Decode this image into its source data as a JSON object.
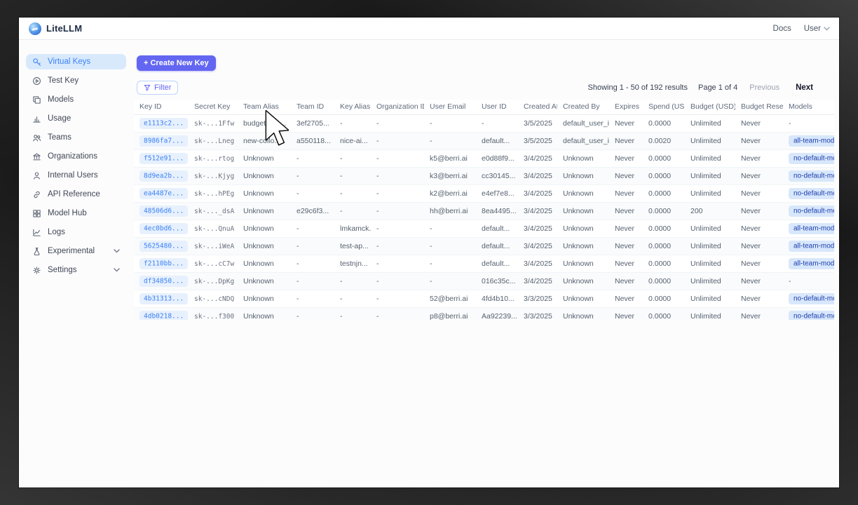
{
  "brand": {
    "name": "LiteLLM"
  },
  "topnav": {
    "docs": "Docs",
    "user": "User"
  },
  "colors": {
    "accent": "#6366f1",
    "link_blue": "#3b82f6",
    "sidebar_active_bg": "#d8e9fc",
    "badge_bg": "#d8e7fb",
    "badge_text": "#1e40af"
  },
  "sidebar": {
    "items": [
      {
        "label": "Virtual Keys",
        "icon": "key-icon",
        "active": true,
        "expandable": false
      },
      {
        "label": "Test Key",
        "icon": "play-circle-icon",
        "active": false,
        "expandable": false
      },
      {
        "label": "Models",
        "icon": "blocks-icon",
        "active": false,
        "expandable": false
      },
      {
        "label": "Usage",
        "icon": "bar-chart-icon",
        "active": false,
        "expandable": false
      },
      {
        "label": "Teams",
        "icon": "people-icon",
        "active": false,
        "expandable": false
      },
      {
        "label": "Organizations",
        "icon": "bank-icon",
        "active": false,
        "expandable": false
      },
      {
        "label": "Internal Users",
        "icon": "user-icon",
        "active": false,
        "expandable": false
      },
      {
        "label": "API Reference",
        "icon": "link-icon",
        "active": false,
        "expandable": false
      },
      {
        "label": "Model Hub",
        "icon": "grid-icon",
        "active": false,
        "expandable": false
      },
      {
        "label": "Logs",
        "icon": "line-chart-icon",
        "active": false,
        "expandable": false
      },
      {
        "label": "Experimental",
        "icon": "flask-icon",
        "active": false,
        "expandable": true
      },
      {
        "label": "Settings",
        "icon": "gear-icon",
        "active": false,
        "expandable": true
      }
    ]
  },
  "toolbar": {
    "create_button": "+ Create New Key",
    "filter_button": "Filter"
  },
  "pagination": {
    "showing": "Showing 1 - 50 of 192 results",
    "page": "Page 1 of 4",
    "previous": "Previous",
    "next": "Next"
  },
  "table": {
    "columns": [
      "Key ID",
      "Secret Key",
      "Team Alias",
      "Team ID",
      "Key Alias",
      "Organization ID",
      "User Email",
      "User ID",
      "Created At",
      "Created By",
      "Expires",
      "Spend (USD)",
      "Budget (USD)",
      "Budget Reset",
      "Models"
    ],
    "rows": [
      {
        "key_id": "e1113c2...",
        "secret_key": "sk-...1Ffw",
        "team_alias": "budget_tea...",
        "team_id": "3ef2705...",
        "key_alias": "-",
        "organization_id": "-",
        "user_email": "-",
        "user_id": "-",
        "created_at": "3/5/2025",
        "created_by": "default_user_id",
        "expires": "Never",
        "spend": "0.0000",
        "budget": "Unlimited",
        "budget_reset": "Never",
        "models": ""
      },
      {
        "key_id": "8986fa7...",
        "secret_key": "sk-...Lneg",
        "team_alias": "new-collo...",
        "team_id": "a550118...",
        "key_alias": "nice-ai...",
        "organization_id": "-",
        "user_email": "-",
        "user_id": "default...",
        "created_at": "3/5/2025",
        "created_by": "default_user_id",
        "expires": "Never",
        "spend": "0.0020",
        "budget": "Unlimited",
        "budget_reset": "Never",
        "models": "all-team-models"
      },
      {
        "key_id": "f512e91...",
        "secret_key": "sk-...rtog",
        "team_alias": "Unknown",
        "team_id": "-",
        "key_alias": "-",
        "organization_id": "-",
        "user_email": "k5@berri.ai",
        "user_id": "e0d88f9...",
        "created_at": "3/4/2025",
        "created_by": "Unknown",
        "expires": "Never",
        "spend": "0.0000",
        "budget": "Unlimited",
        "budget_reset": "Never",
        "models": "no-default-models"
      },
      {
        "key_id": "8d9ea2b...",
        "secret_key": "sk-...Kjyg",
        "team_alias": "Unknown",
        "team_id": "-",
        "key_alias": "-",
        "organization_id": "-",
        "user_email": "k3@berri.ai",
        "user_id": "cc30145...",
        "created_at": "3/4/2025",
        "created_by": "Unknown",
        "expires": "Never",
        "spend": "0.0000",
        "budget": "Unlimited",
        "budget_reset": "Never",
        "models": "no-default-models"
      },
      {
        "key_id": "ea4487e...",
        "secret_key": "sk-...hPEg",
        "team_alias": "Unknown",
        "team_id": "-",
        "key_alias": "-",
        "organization_id": "-",
        "user_email": "k2@berri.ai",
        "user_id": "e4ef7e8...",
        "created_at": "3/4/2025",
        "created_by": "Unknown",
        "expires": "Never",
        "spend": "0.0000",
        "budget": "Unlimited",
        "budget_reset": "Never",
        "models": "no-default-models"
      },
      {
        "key_id": "48506d6...",
        "secret_key": "sk-..._dsA",
        "team_alias": "Unknown",
        "team_id": "e29c6f3...",
        "key_alias": "-",
        "organization_id": "-",
        "user_email": "hh@berri.ai",
        "user_id": "8ea4495...",
        "created_at": "3/4/2025",
        "created_by": "Unknown",
        "expires": "Never",
        "spend": "0.0000",
        "budget": "200",
        "budget_reset": "Never",
        "models": "no-default-models"
      },
      {
        "key_id": "4ec0bd6...",
        "secret_key": "sk-...QnuA",
        "team_alias": "Unknown",
        "team_id": "-",
        "key_alias": "lmkamck...",
        "organization_id": "-",
        "user_email": "-",
        "user_id": "default...",
        "created_at": "3/4/2025",
        "created_by": "Unknown",
        "expires": "Never",
        "spend": "0.0000",
        "budget": "Unlimited",
        "budget_reset": "Never",
        "models": "all-team-models"
      },
      {
        "key_id": "5625480...",
        "secret_key": "sk-...iWeA",
        "team_alias": "Unknown",
        "team_id": "-",
        "key_alias": "test-ap...",
        "organization_id": "-",
        "user_email": "-",
        "user_id": "default...",
        "created_at": "3/4/2025",
        "created_by": "Unknown",
        "expires": "Never",
        "spend": "0.0000",
        "budget": "Unlimited",
        "budget_reset": "Never",
        "models": "all-team-models"
      },
      {
        "key_id": "f2110bb...",
        "secret_key": "sk-...cC7w",
        "team_alias": "Unknown",
        "team_id": "-",
        "key_alias": "testnjn...",
        "organization_id": "-",
        "user_email": "-",
        "user_id": "default...",
        "created_at": "3/4/2025",
        "created_by": "Unknown",
        "expires": "Never",
        "spend": "0.0000",
        "budget": "Unlimited",
        "budget_reset": "Never",
        "models": "all-team-models"
      },
      {
        "key_id": "df34850...",
        "secret_key": "sk-...DpKg",
        "team_alias": "Unknown",
        "team_id": "-",
        "key_alias": "-",
        "organization_id": "-",
        "user_email": "-",
        "user_id": "016c35c...",
        "created_at": "3/4/2025",
        "created_by": "Unknown",
        "expires": "Never",
        "spend": "0.0000",
        "budget": "Unlimited",
        "budget_reset": "Never",
        "models": ""
      },
      {
        "key_id": "4b31313...",
        "secret_key": "sk-...cNDQ",
        "team_alias": "Unknown",
        "team_id": "-",
        "key_alias": "-",
        "organization_id": "-",
        "user_email": "52@berri.ai",
        "user_id": "4fd4b10...",
        "created_at": "3/3/2025",
        "created_by": "Unknown",
        "expires": "Never",
        "spend": "0.0000",
        "budget": "Unlimited",
        "budget_reset": "Never",
        "models": "no-default-models"
      },
      {
        "key_id": "4db0218...",
        "secret_key": "sk-...f300",
        "team_alias": "Unknown",
        "team_id": "-",
        "key_alias": "-",
        "organization_id": "-",
        "user_email": "p8@berri.ai",
        "user_id": "Aa92239...",
        "created_at": "3/3/2025",
        "created_by": "Unknown",
        "expires": "Never",
        "spend": "0.0000",
        "budget": "Unlimited",
        "budget_reset": "Never",
        "models": "no-default-models"
      }
    ]
  }
}
